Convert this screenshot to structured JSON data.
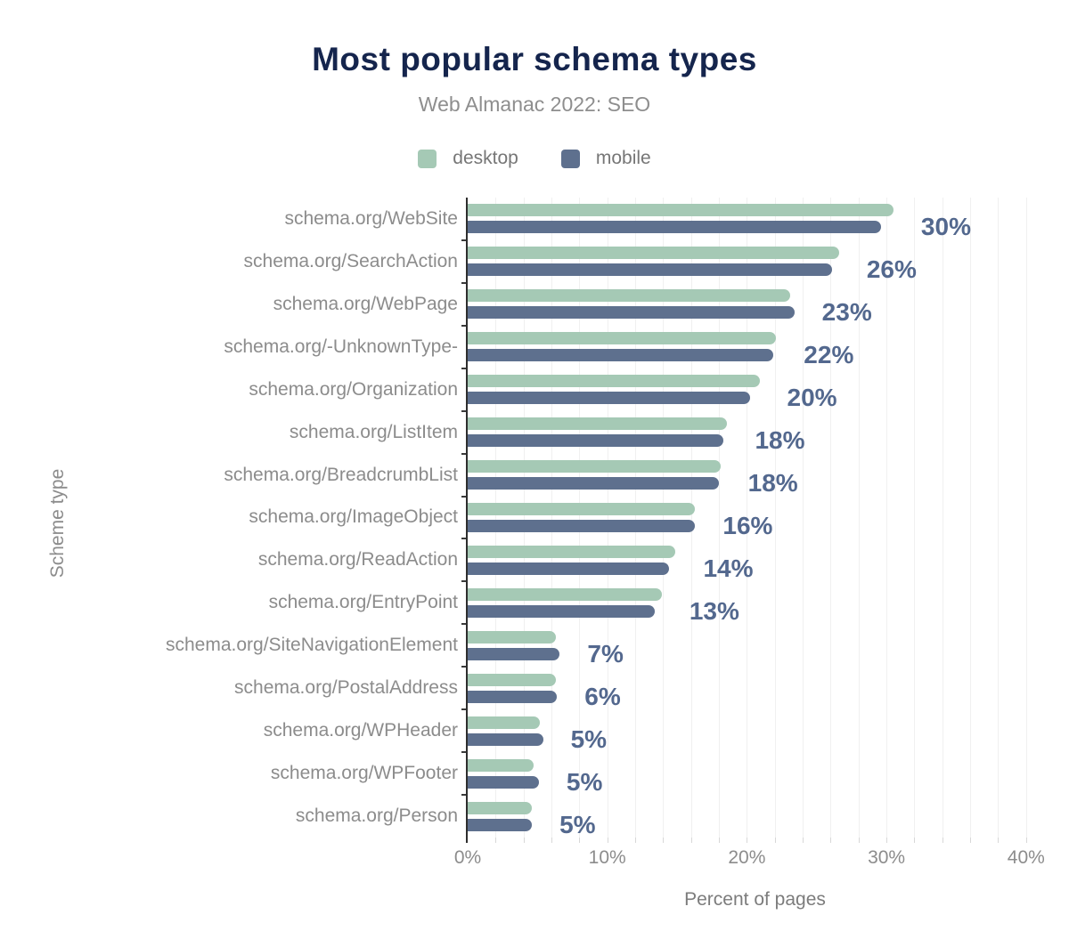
{
  "chart_data": {
    "type": "bar",
    "orientation": "horizontal",
    "title": "Most popular schema types",
    "subtitle": "Web Almanac 2022: SEO",
    "xlabel": "Percent of pages",
    "ylabel": "Scheme type",
    "legend_position": "top-center",
    "grid": "vertical, every 2%",
    "x_axis_range": [
      0,
      41
    ],
    "x_ticks": [
      {
        "label": "0%",
        "value": 0
      },
      {
        "label": "10%",
        "value": 10
      },
      {
        "label": "20%",
        "value": 20
      },
      {
        "label": "30%",
        "value": 30
      },
      {
        "label": "40%",
        "value": 40
      }
    ],
    "categories": [
      "schema.org/WebSite",
      "schema.org/SearchAction",
      "schema.org/WebPage",
      "schema.org/-UnknownType-",
      "schema.org/Organization",
      "schema.org/ListItem",
      "schema.org/BreadcrumbList",
      "schema.org/ImageObject",
      "schema.org/ReadAction",
      "schema.org/EntryPoint",
      "schema.org/SiteNavigationElement",
      "schema.org/PostalAddress",
      "schema.org/WPHeader",
      "schema.org/WPFooter",
      "schema.org/Person"
    ],
    "series": [
      {
        "name": "desktop",
        "color": "#a5c9b5",
        "values": [
          30.5,
          26.6,
          23.1,
          22.1,
          20.9,
          18.6,
          18.1,
          16.3,
          14.9,
          13.9,
          6.3,
          6.3,
          5.2,
          4.7,
          4.6
        ]
      },
      {
        "name": "mobile",
        "color": "#5e708e",
        "values": [
          29.6,
          26.1,
          23.4,
          21.9,
          20.2,
          18.3,
          18.0,
          16.3,
          14.4,
          13.4,
          6.6,
          6.4,
          5.4,
          5.1,
          4.6
        ]
      }
    ],
    "value_labels": [
      "30%",
      "26%",
      "23%",
      "22%",
      "20%",
      "18%",
      "18%",
      "16%",
      "14%",
      "13%",
      "7%",
      "6%",
      "5%",
      "5%",
      "5%"
    ],
    "value_label_color": "#53688e",
    "title_color": "#15254d"
  }
}
